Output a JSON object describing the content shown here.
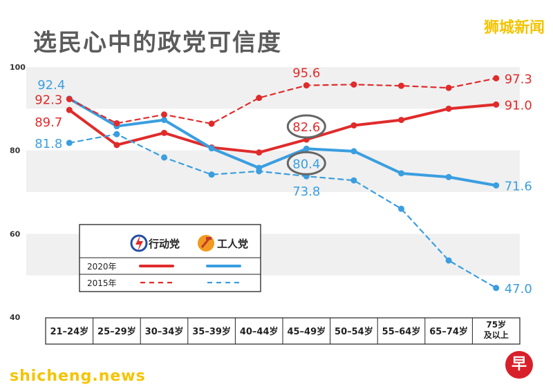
{
  "title": "选民心中的政党可信度",
  "brand_top": "狮城新闻",
  "brand_bottom": "shicheng.news",
  "logo_char": "早",
  "legend": {
    "party_pap": "行动党",
    "party_wp": "工人党",
    "year_2020": "2020年",
    "year_2015": "2015年"
  },
  "colors": {
    "pap": "#e02b2b",
    "wp": "#3a9ee0",
    "grid": "#f0f0f0",
    "axis_text": "#333333"
  },
  "chart_data": {
    "type": "line",
    "title": "选民心中的政党可信度",
    "categories": [
      "21–24岁",
      "25–29岁",
      "30–34岁",
      "35–39岁",
      "40–44岁",
      "45–49岁",
      "50–54岁",
      "55–64岁",
      "65–74岁",
      "75岁\n及以上"
    ],
    "ylim": [
      40,
      100
    ],
    "yticks": [
      40,
      60,
      80,
      100
    ],
    "series": [
      {
        "name": "行动党 2020年",
        "party": "pap",
        "year": "2020",
        "style": "solid",
        "values": [
          89.7,
          81.3,
          84.2,
          80.7,
          79.5,
          82.6,
          86.0,
          87.3,
          90.0,
          91.0
        ]
      },
      {
        "name": "工人党 2020年",
        "party": "wp",
        "year": "2020",
        "style": "solid",
        "values": [
          92.4,
          85.8,
          87.3,
          80.5,
          75.8,
          80.4,
          79.8,
          74.5,
          73.6,
          71.6
        ]
      },
      {
        "name": "行动党 2015年",
        "party": "pap",
        "year": "2015",
        "style": "dashed",
        "values": [
          92.3,
          86.5,
          88.6,
          86.4,
          92.6,
          95.6,
          95.8,
          95.5,
          95.0,
          97.3
        ]
      },
      {
        "name": "工人党 2015年",
        "party": "wp",
        "year": "2015",
        "style": "dashed",
        "values": [
          81.8,
          83.9,
          78.3,
          74.2,
          75.0,
          73.8,
          72.8,
          66.0,
          53.6,
          47.0
        ]
      }
    ],
    "data_labels": [
      {
        "series": 1,
        "index": 0,
        "text": "92.4",
        "side": "left-up"
      },
      {
        "series": 2,
        "index": 0,
        "text": "92.3",
        "side": "left"
      },
      {
        "series": 0,
        "index": 0,
        "text": "89.7",
        "side": "left-down"
      },
      {
        "series": 3,
        "index": 0,
        "text": "81.8",
        "side": "left"
      },
      {
        "series": 2,
        "index": 5,
        "text": "95.6",
        "side": "up"
      },
      {
        "series": 0,
        "index": 5,
        "text": "82.6",
        "side": "up",
        "circled": true
      },
      {
        "series": 1,
        "index": 5,
        "text": "80.4",
        "side": "down",
        "circled": true
      },
      {
        "series": 3,
        "index": 5,
        "text": "73.8",
        "side": "down"
      },
      {
        "series": 2,
        "index": 9,
        "text": "97.3",
        "side": "right"
      },
      {
        "series": 0,
        "index": 9,
        "text": "91.0",
        "side": "right"
      },
      {
        "series": 1,
        "index": 9,
        "text": "71.6",
        "side": "right"
      },
      {
        "series": 3,
        "index": 9,
        "text": "47.0",
        "side": "right"
      }
    ]
  }
}
